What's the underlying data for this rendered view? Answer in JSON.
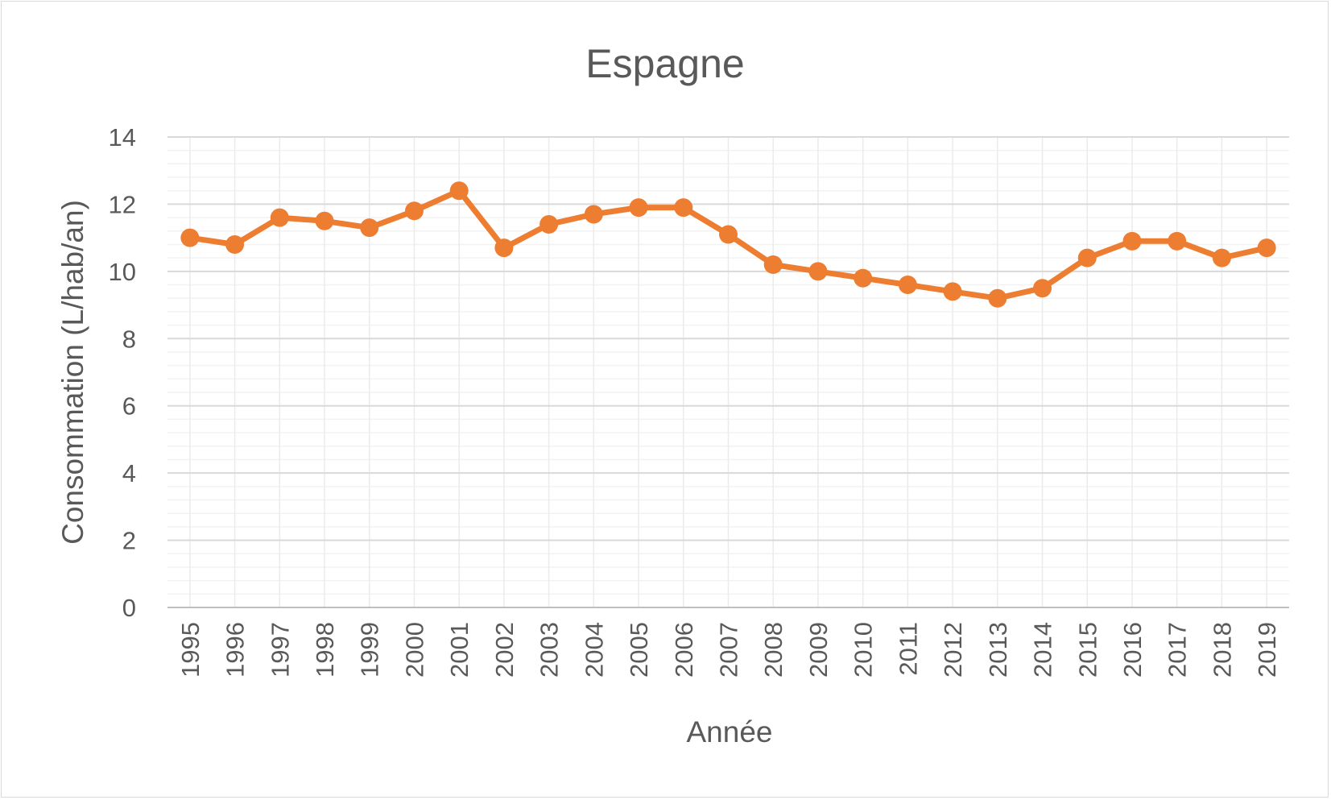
{
  "chart_data": {
    "type": "line",
    "title": "Espagne",
    "xlabel": "Année",
    "ylabel": "Consommation (L/hab/an)",
    "ylim": [
      0,
      14
    ],
    "yticks": [
      "0",
      "2",
      "4",
      "6",
      "8",
      "10",
      "12",
      "14"
    ],
    "grid": true,
    "legend": "none",
    "categories": [
      "1995",
      "1996",
      "1997",
      "1998",
      "1999",
      "2000",
      "2001",
      "2002",
      "2003",
      "2004",
      "2005",
      "2006",
      "2007",
      "2008",
      "2009",
      "2010",
      "2011",
      "2012",
      "2013",
      "2014",
      "2015",
      "2016",
      "2017",
      "2018",
      "2019"
    ],
    "series": [
      {
        "color": "#ed7d31",
        "values": [
          11.0,
          10.8,
          11.6,
          11.5,
          11.3,
          11.8,
          12.4,
          10.7,
          11.4,
          11.7,
          11.9,
          11.9,
          11.1,
          10.2,
          10.0,
          9.8,
          9.6,
          9.4,
          9.2,
          9.5,
          10.4,
          10.9,
          10.9,
          10.4,
          10.7
        ]
      }
    ]
  }
}
